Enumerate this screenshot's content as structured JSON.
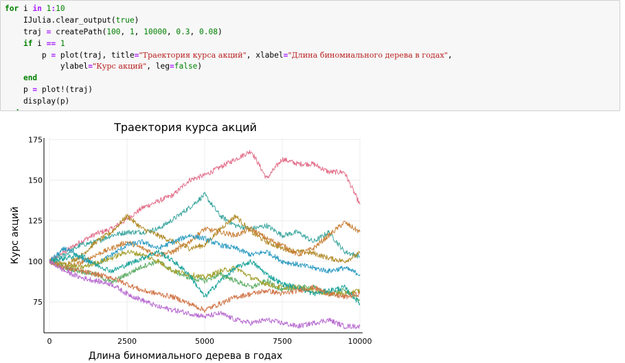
{
  "code_cell": {
    "lines": [
      [
        {
          "t": "kw",
          "v": "for"
        },
        {
          "t": "plain",
          "v": " i "
        },
        {
          "t": "op",
          "v": "in"
        },
        {
          "t": "plain",
          "v": " "
        },
        {
          "t": "num",
          "v": "1"
        },
        {
          "t": "op",
          "v": ":"
        },
        {
          "t": "num",
          "v": "10"
        }
      ],
      [
        {
          "t": "plain",
          "v": "    IJulia.clear_output("
        },
        {
          "t": "num",
          "v": "true"
        },
        {
          "t": "plain",
          "v": ")"
        }
      ],
      [
        {
          "t": "plain",
          "v": "    traj "
        },
        {
          "t": "op",
          "v": "="
        },
        {
          "t": "plain",
          "v": " createPath("
        },
        {
          "t": "num",
          "v": "100"
        },
        {
          "t": "plain",
          "v": ", "
        },
        {
          "t": "num",
          "v": "1"
        },
        {
          "t": "plain",
          "v": ", "
        },
        {
          "t": "num",
          "v": "10000"
        },
        {
          "t": "plain",
          "v": ", "
        },
        {
          "t": "num",
          "v": "0.3"
        },
        {
          "t": "plain",
          "v": ", "
        },
        {
          "t": "num",
          "v": "0.08"
        },
        {
          "t": "plain",
          "v": ")"
        }
      ],
      [
        {
          "t": "plain",
          "v": "    "
        },
        {
          "t": "kw",
          "v": "if"
        },
        {
          "t": "plain",
          "v": " i "
        },
        {
          "t": "op",
          "v": "=="
        },
        {
          "t": "plain",
          "v": " "
        },
        {
          "t": "num",
          "v": "1"
        }
      ],
      [
        {
          "t": "plain",
          "v": "        p "
        },
        {
          "t": "op",
          "v": "="
        },
        {
          "t": "plain",
          "v": " plot(traj, title"
        },
        {
          "t": "op",
          "v": "="
        },
        {
          "t": "str",
          "v": "\"Траектория курса акций\""
        },
        {
          "t": "plain",
          "v": ", xlabel"
        },
        {
          "t": "op",
          "v": "="
        },
        {
          "t": "str",
          "v": "\"Длина биномиального дерева в годах\""
        },
        {
          "t": "plain",
          "v": ","
        }
      ],
      [
        {
          "t": "plain",
          "v": "            ylabel"
        },
        {
          "t": "op",
          "v": "="
        },
        {
          "t": "str",
          "v": "\"Курс акций\""
        },
        {
          "t": "plain",
          "v": ", leg"
        },
        {
          "t": "op",
          "v": "="
        },
        {
          "t": "num",
          "v": "false"
        },
        {
          "t": "plain",
          "v": ")"
        }
      ],
      [
        {
          "t": "plain",
          "v": "    "
        },
        {
          "t": "kw",
          "v": "end"
        }
      ],
      [
        {
          "t": "plain",
          "v": "    p "
        },
        {
          "t": "op",
          "v": "="
        },
        {
          "t": "plain",
          "v": " plot!(traj)"
        }
      ],
      [
        {
          "t": "plain",
          "v": "    display(p)"
        }
      ],
      [
        {
          "t": "kw",
          "v": "end"
        }
      ]
    ]
  },
  "chart_data": {
    "type": "line",
    "title": "Траектория курса акций",
    "xlabel": "Длина биномиального дерева в годах",
    "ylabel": "Курс акций",
    "xlim": [
      0,
      10000
    ],
    "ylim": [
      56,
      176
    ],
    "xticks": [
      0,
      2500,
      5000,
      7500,
      10000
    ],
    "yticks": [
      75,
      100,
      125,
      150,
      175
    ],
    "grid": true,
    "legend": "none",
    "series": [
      {
        "color": "#e26f8a",
        "x": [
          0,
          500,
          1000,
          1500,
          2000,
          2500,
          3000,
          3500,
          4000,
          4500,
          5000,
          5500,
          6000,
          6500,
          7000,
          7500,
          8000,
          8500,
          9000,
          9500,
          10000
        ],
        "y": [
          100,
          106,
          112,
          117,
          120,
          126,
          133,
          137,
          141,
          150,
          153,
          158,
          163,
          168,
          151,
          163,
          160,
          160,
          155,
          155,
          135
        ]
      },
      {
        "color": "#3da7a0",
        "x": [
          0,
          500,
          1000,
          1500,
          2000,
          2500,
          3000,
          3500,
          4000,
          4500,
          5000,
          5500,
          6000,
          6500,
          7000,
          7500,
          8000,
          8500,
          9000,
          9500,
          10000
        ],
        "y": [
          100,
          104,
          110,
          112,
          116,
          118,
          118,
          120,
          126,
          133,
          141,
          128,
          122,
          120,
          122,
          116,
          118,
          112,
          118,
          106,
          103
        ]
      },
      {
        "color": "#b18a27",
        "x": [
          0,
          500,
          1000,
          1500,
          2000,
          2500,
          3000,
          3500,
          4000,
          4500,
          5000,
          5500,
          6000,
          6500,
          7000,
          7500,
          8000,
          8500,
          9000,
          9500,
          10000
        ],
        "y": [
          100,
          98,
          103,
          112,
          118,
          128,
          120,
          116,
          112,
          108,
          110,
          120,
          128,
          118,
          112,
          108,
          106,
          105,
          102,
          100,
          105
        ]
      },
      {
        "color": "#c88038",
        "x": [
          0,
          500,
          1000,
          1500,
          2000,
          2500,
          3000,
          3500,
          4000,
          4500,
          5000,
          5500,
          6000,
          6500,
          7000,
          7500,
          8000,
          8500,
          9000,
          9500,
          10000
        ],
        "y": [
          100,
          96,
          99,
          104,
          108,
          112,
          108,
          104,
          106,
          112,
          120,
          118,
          116,
          120,
          114,
          110,
          104,
          108,
          116,
          124,
          118
        ]
      },
      {
        "color": "#2f9cc2",
        "x": [
          0,
          500,
          1000,
          1500,
          2000,
          2500,
          3000,
          3500,
          4000,
          4500,
          5000,
          5500,
          6000,
          6500,
          7000,
          7500,
          8000,
          8500,
          9000,
          9500,
          10000
        ],
        "y": [
          100,
          108,
          102,
          98,
          104,
          110,
          112,
          108,
          112,
          116,
          114,
          110,
          108,
          104,
          106,
          100,
          98,
          96,
          94,
          96,
          92
        ]
      },
      {
        "color": "#5aab64",
        "x": [
          0,
          500,
          1000,
          1500,
          2000,
          2500,
          3000,
          3500,
          4000,
          4500,
          5000,
          5500,
          6000,
          6500,
          7000,
          7500,
          8000,
          8500,
          9000,
          9500,
          10000
        ],
        "y": [
          100,
          96,
          94,
          92,
          87,
          92,
          97,
          100,
          94,
          90,
          88,
          92,
          88,
          84,
          88,
          82,
          84,
          84,
          80,
          82,
          76
        ]
      },
      {
        "color": "#a3a02f",
        "x": [
          0,
          500,
          1000,
          1500,
          2000,
          2500,
          3000,
          3500,
          4000,
          4500,
          5000,
          5500,
          6000,
          6500,
          7000,
          7500,
          8000,
          8500,
          9000,
          9500,
          10000
        ],
        "y": [
          100,
          98,
          96,
          99,
          102,
          106,
          104,
          100,
          94,
          92,
          90,
          94,
          96,
          90,
          86,
          84,
          84,
          82,
          80,
          80,
          82
        ]
      },
      {
        "color": "#1ba39a",
        "x": [
          0,
          500,
          1000,
          1500,
          2000,
          2500,
          3000,
          3500,
          4000,
          4500,
          5000,
          5500,
          6000,
          6500,
          7000,
          7500,
          8000,
          8500,
          9000,
          9500,
          10000
        ],
        "y": [
          100,
          102,
          104,
          98,
          94,
          98,
          102,
          106,
          100,
          92,
          78,
          88,
          96,
          100,
          92,
          86,
          84,
          80,
          82,
          84,
          74
        ]
      },
      {
        "color": "#d17548",
        "x": [
          0,
          500,
          1000,
          1500,
          2000,
          2500,
          3000,
          3500,
          4000,
          4500,
          5000,
          5500,
          6000,
          6500,
          7000,
          7500,
          8000,
          8500,
          9000,
          9500,
          10000
        ],
        "y": [
          100,
          96,
          94,
          92,
          90,
          86,
          82,
          80,
          78,
          74,
          70,
          74,
          78,
          80,
          82,
          80,
          82,
          84,
          80,
          78,
          80
        ]
      },
      {
        "color": "#b76bd0",
        "x": [
          0,
          500,
          1000,
          1500,
          2000,
          2500,
          3000,
          3500,
          4000,
          4500,
          5000,
          5500,
          6000,
          6500,
          7000,
          7500,
          8000,
          8500,
          9000,
          9500,
          10000
        ],
        "y": [
          100,
          94,
          90,
          88,
          86,
          80,
          76,
          72,
          70,
          68,
          66,
          68,
          64,
          62,
          64,
          62,
          60,
          62,
          64,
          60,
          60
        ]
      }
    ]
  }
}
